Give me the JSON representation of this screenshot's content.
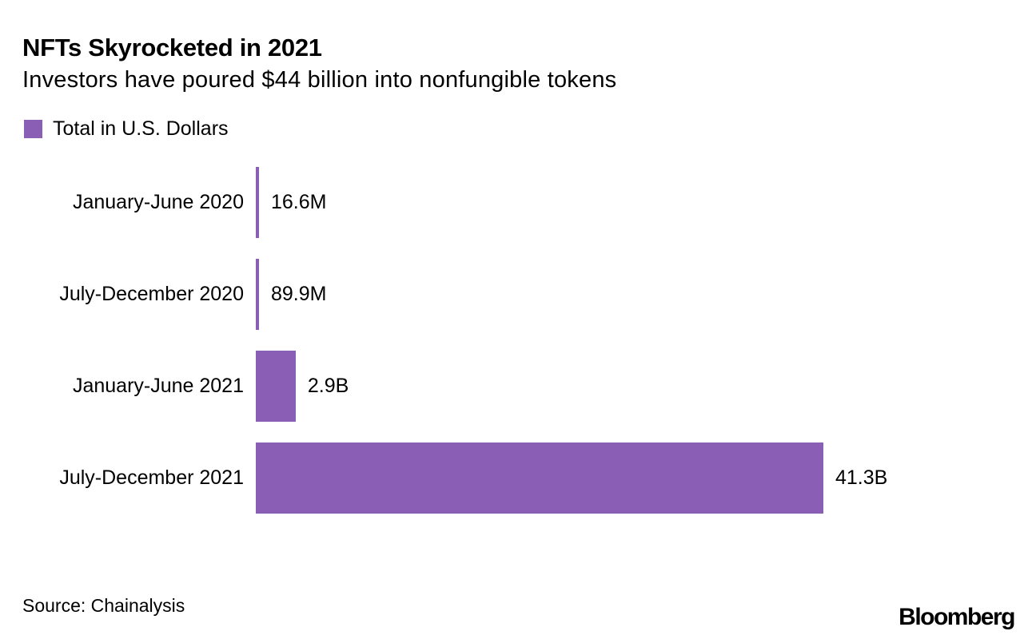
{
  "header": {
    "title": "NFTs Skyrocketed in 2021",
    "subtitle": "Investors have poured $44 billion into nonfungible tokens"
  },
  "legend": {
    "label": "Total in U.S. Dollars",
    "swatch_color": "#8a5eb5"
  },
  "chart_data": {
    "type": "bar",
    "orientation": "horizontal",
    "title": "NFTs Skyrocketed in 2021",
    "subtitle": "Investors have poured $44 billion into nonfungible tokens",
    "legend_entries": [
      "Total in U.S. Dollars"
    ],
    "categories": [
      "January-June 2020",
      "July-December 2020",
      "January-June 2021",
      "July-December 2021"
    ],
    "values_usd_billions": [
      0.0166,
      0.0899,
      2.9,
      41.3
    ],
    "value_labels": [
      "16.6M",
      "89.9M",
      "2.9B",
      "41.3B"
    ],
    "bar_color": "#8a5eb5",
    "xlim_billions": [
      0,
      41.3
    ],
    "grid": "off",
    "axis_lines": "none",
    "legend_position": "top-left"
  },
  "footer": {
    "source": "Source: Chainalysis",
    "brand": "Bloomberg"
  }
}
